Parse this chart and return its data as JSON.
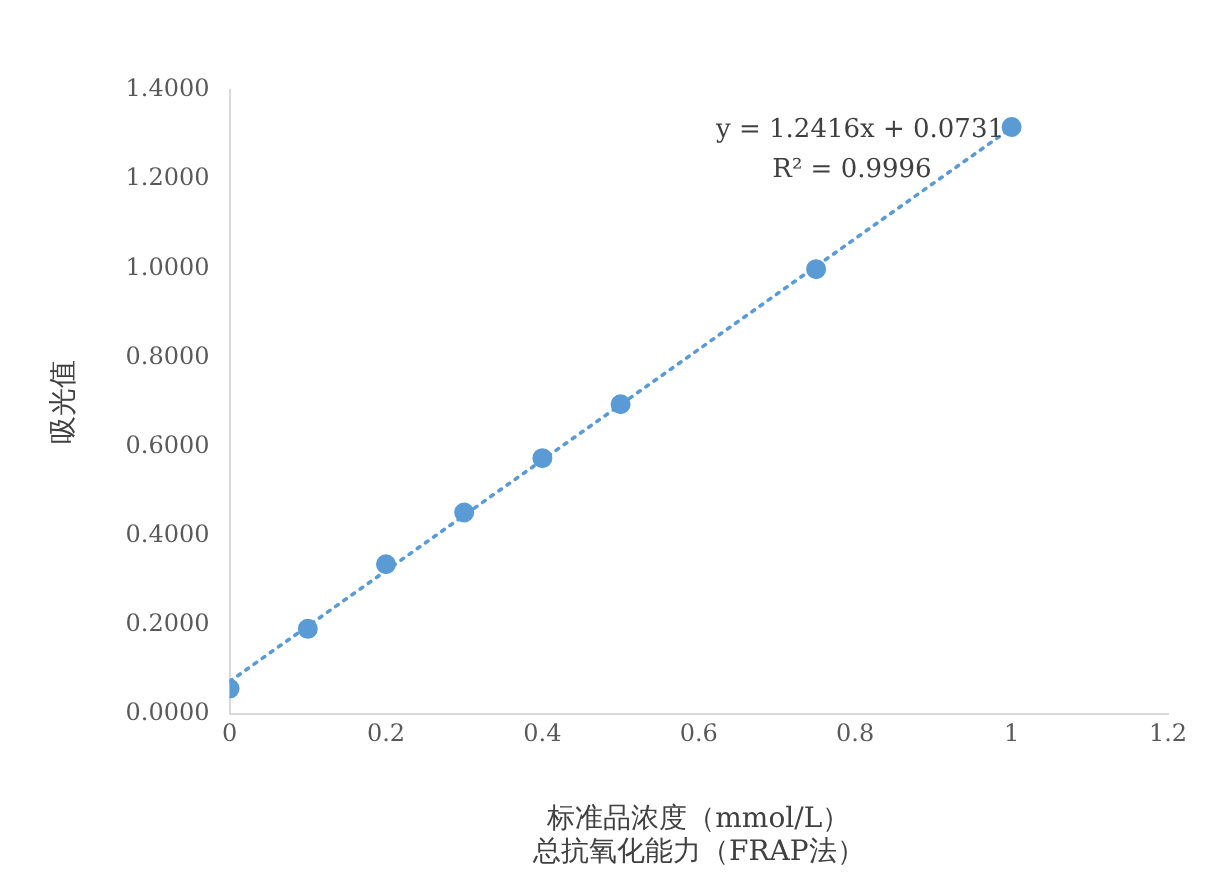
{
  "chart_data": {
    "type": "scatter",
    "title": "总抗氧化能力（FRAP法）",
    "xlabel": "标准品浓度（mmol/L）",
    "ylabel": "吸光值",
    "x": [
      0,
      0.1,
      0.2,
      0.3,
      0.4,
      0.5,
      0.75,
      1
    ],
    "series": [
      {
        "color": "#5b9bd5",
        "values": [
          0.057,
          0.191,
          0.336,
          0.452,
          0.574,
          0.695,
          0.998,
          1.317
        ],
        "marker": "circle"
      },
      {
        "type": "line",
        "color": "#5b9bd5",
        "x": [
          0,
          1
        ],
        "values": [
          0.073,
          1.315
        ],
        "line_style": "dotted",
        "marker": "none"
      }
    ],
    "xlim": [
      0,
      1.2
    ],
    "xticks": [
      0,
      0.2,
      0.4,
      0.6,
      0.8,
      1,
      1.2
    ],
    "ylim": [
      0,
      1.4
    ],
    "yticks": [
      {
        "value": 0,
        "label": "0.0000"
      },
      {
        "value": 0.2,
        "label": "0.2000"
      },
      {
        "value": 0.4,
        "label": "0.4000"
      },
      {
        "value": 0.6,
        "label": "0.6000"
      },
      {
        "value": 0.8,
        "label": "0.8000"
      },
      {
        "value": 1,
        "label": "1.0000"
      },
      {
        "value": 1.2,
        "label": "1.2000"
      },
      {
        "value": 1.4,
        "label": "1.4000"
      }
    ],
    "annotations": [
      "y = 1.2416x + 0.0731",
      "R² = 0.9996"
    ],
    "grid": false,
    "legend": false
  }
}
